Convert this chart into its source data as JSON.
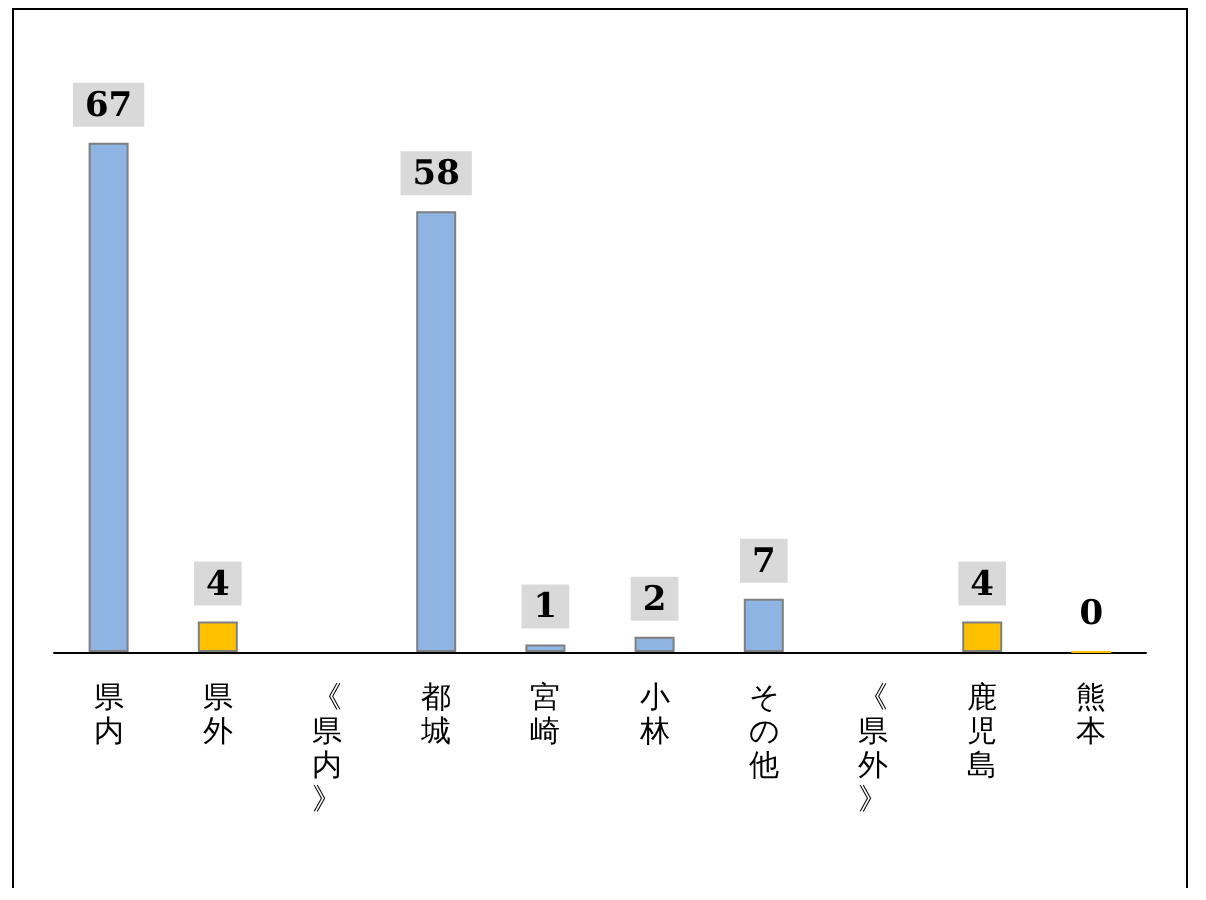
{
  "chart_data": {
    "type": "bar",
    "categories": [
      "県内",
      "県外",
      "《県内》",
      "都城",
      "宮崎",
      "小林",
      "その他",
      "《県外》",
      "鹿児島",
      "熊本"
    ],
    "values": [
      67,
      4,
      null,
      58,
      1,
      2,
      7,
      null,
      4,
      0
    ],
    "colors": [
      "#8eb4e3",
      "#ffc000",
      "#8eb4e3",
      "#8eb4e3",
      "#8eb4e3",
      "#8eb4e3",
      "#8eb4e3",
      "#ffc000",
      "#ffc000",
      "#ffc000"
    ],
    "data_labels": true,
    "grid": false
  }
}
